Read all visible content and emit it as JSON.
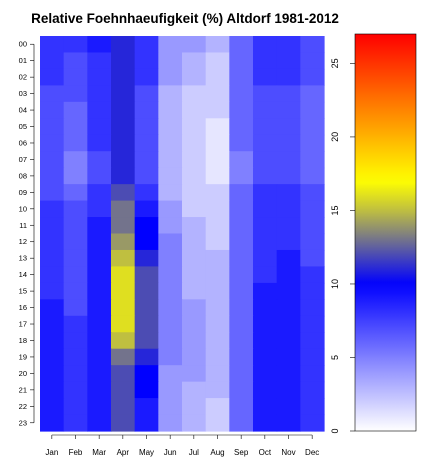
{
  "chart_data": {
    "type": "heatmap",
    "title": "Relative Foehnhaeufigkeit (%) Altdorf 1981-2012",
    "xlabel": "",
    "ylabel": "",
    "x_categories": [
      "Jan",
      "Feb",
      "Mar",
      "Apr",
      "May",
      "Jun",
      "Jul",
      "Aug",
      "Sep",
      "Oct",
      "Nov",
      "Dec"
    ],
    "y_categories": [
      "00",
      "01",
      "02",
      "03",
      "04",
      "05",
      "06",
      "07",
      "08",
      "09",
      "10",
      "11",
      "12",
      "13",
      "14",
      "15",
      "16",
      "17",
      "18",
      "19",
      "20",
      "21",
      "22",
      "23"
    ],
    "values": [
      [
        8,
        8,
        9,
        11,
        8,
        4,
        4,
        3,
        6,
        8,
        8,
        7
      ],
      [
        8,
        7,
        8,
        11,
        8,
        4,
        3,
        2,
        6,
        8,
        8,
        7
      ],
      [
        8,
        7,
        8,
        11,
        8,
        4,
        3,
        2,
        6,
        8,
        8,
        7
      ],
      [
        7,
        7,
        8,
        11,
        7,
        3,
        2,
        2,
        6,
        7,
        7,
        6
      ],
      [
        7,
        6,
        8,
        11,
        7,
        3,
        2,
        2,
        6,
        7,
        7,
        6
      ],
      [
        7,
        6,
        8,
        11,
        7,
        3,
        2,
        1,
        6,
        7,
        7,
        6
      ],
      [
        7,
        6,
        8,
        11,
        7,
        3,
        2,
        1,
        6,
        7,
        7,
        6
      ],
      [
        7,
        5,
        7,
        11,
        7,
        3,
        2,
        1,
        5,
        7,
        7,
        6
      ],
      [
        7,
        5,
        7,
        11,
        7,
        3,
        2,
        1,
        5,
        7,
        7,
        6
      ],
      [
        7,
        6,
        8,
        12,
        8,
        3,
        2,
        2,
        6,
        8,
        8,
        7
      ],
      [
        8,
        7,
        8,
        13,
        9,
        4,
        2,
        2,
        6,
        8,
        8,
        7
      ],
      [
        8,
        7,
        9,
        13,
        10,
        4,
        3,
        2,
        6,
        8,
        8,
        7
      ],
      [
        8,
        7,
        9,
        14,
        10,
        5,
        3,
        2,
        6,
        8,
        8,
        7
      ],
      [
        8,
        7,
        9,
        15,
        11,
        5,
        3,
        3,
        6,
        8,
        9,
        7
      ],
      [
        8,
        7,
        9,
        16,
        12,
        5,
        3,
        3,
        6,
        8,
        9,
        8
      ],
      [
        8,
        7,
        9,
        16,
        12,
        5,
        3,
        3,
        6,
        9,
        9,
        8
      ],
      [
        9,
        7,
        9,
        16,
        12,
        5,
        4,
        3,
        6,
        9,
        9,
        8
      ],
      [
        9,
        8,
        9,
        16,
        12,
        5,
        4,
        3,
        6,
        9,
        9,
        8
      ],
      [
        9,
        8,
        9,
        15,
        12,
        5,
        4,
        3,
        6,
        9,
        9,
        8
      ],
      [
        9,
        8,
        9,
        13,
        11,
        5,
        4,
        3,
        6,
        9,
        9,
        8
      ],
      [
        9,
        8,
        9,
        12,
        10,
        4,
        4,
        3,
        6,
        9,
        9,
        8
      ],
      [
        9,
        8,
        9,
        12,
        10,
        4,
        3,
        3,
        6,
        9,
        9,
        8
      ],
      [
        9,
        8,
        9,
        12,
        9,
        4,
        3,
        2,
        6,
        9,
        9,
        8
      ],
      [
        9,
        8,
        9,
        12,
        9,
        4,
        3,
        2,
        6,
        9,
        9,
        8
      ]
    ],
    "colorbar": {
      "range": [
        0,
        27
      ],
      "ticks": [
        "0",
        "5",
        "10",
        "15",
        "20",
        "25"
      ],
      "colors": [
        "#ffffff",
        "#0000ff",
        "#bfbf40",
        "#ffff00",
        "#ff8000",
        "#ff0000"
      ],
      "color_stops": [
        0,
        10,
        15,
        17,
        22,
        27
      ]
    },
    "grid": false
  }
}
